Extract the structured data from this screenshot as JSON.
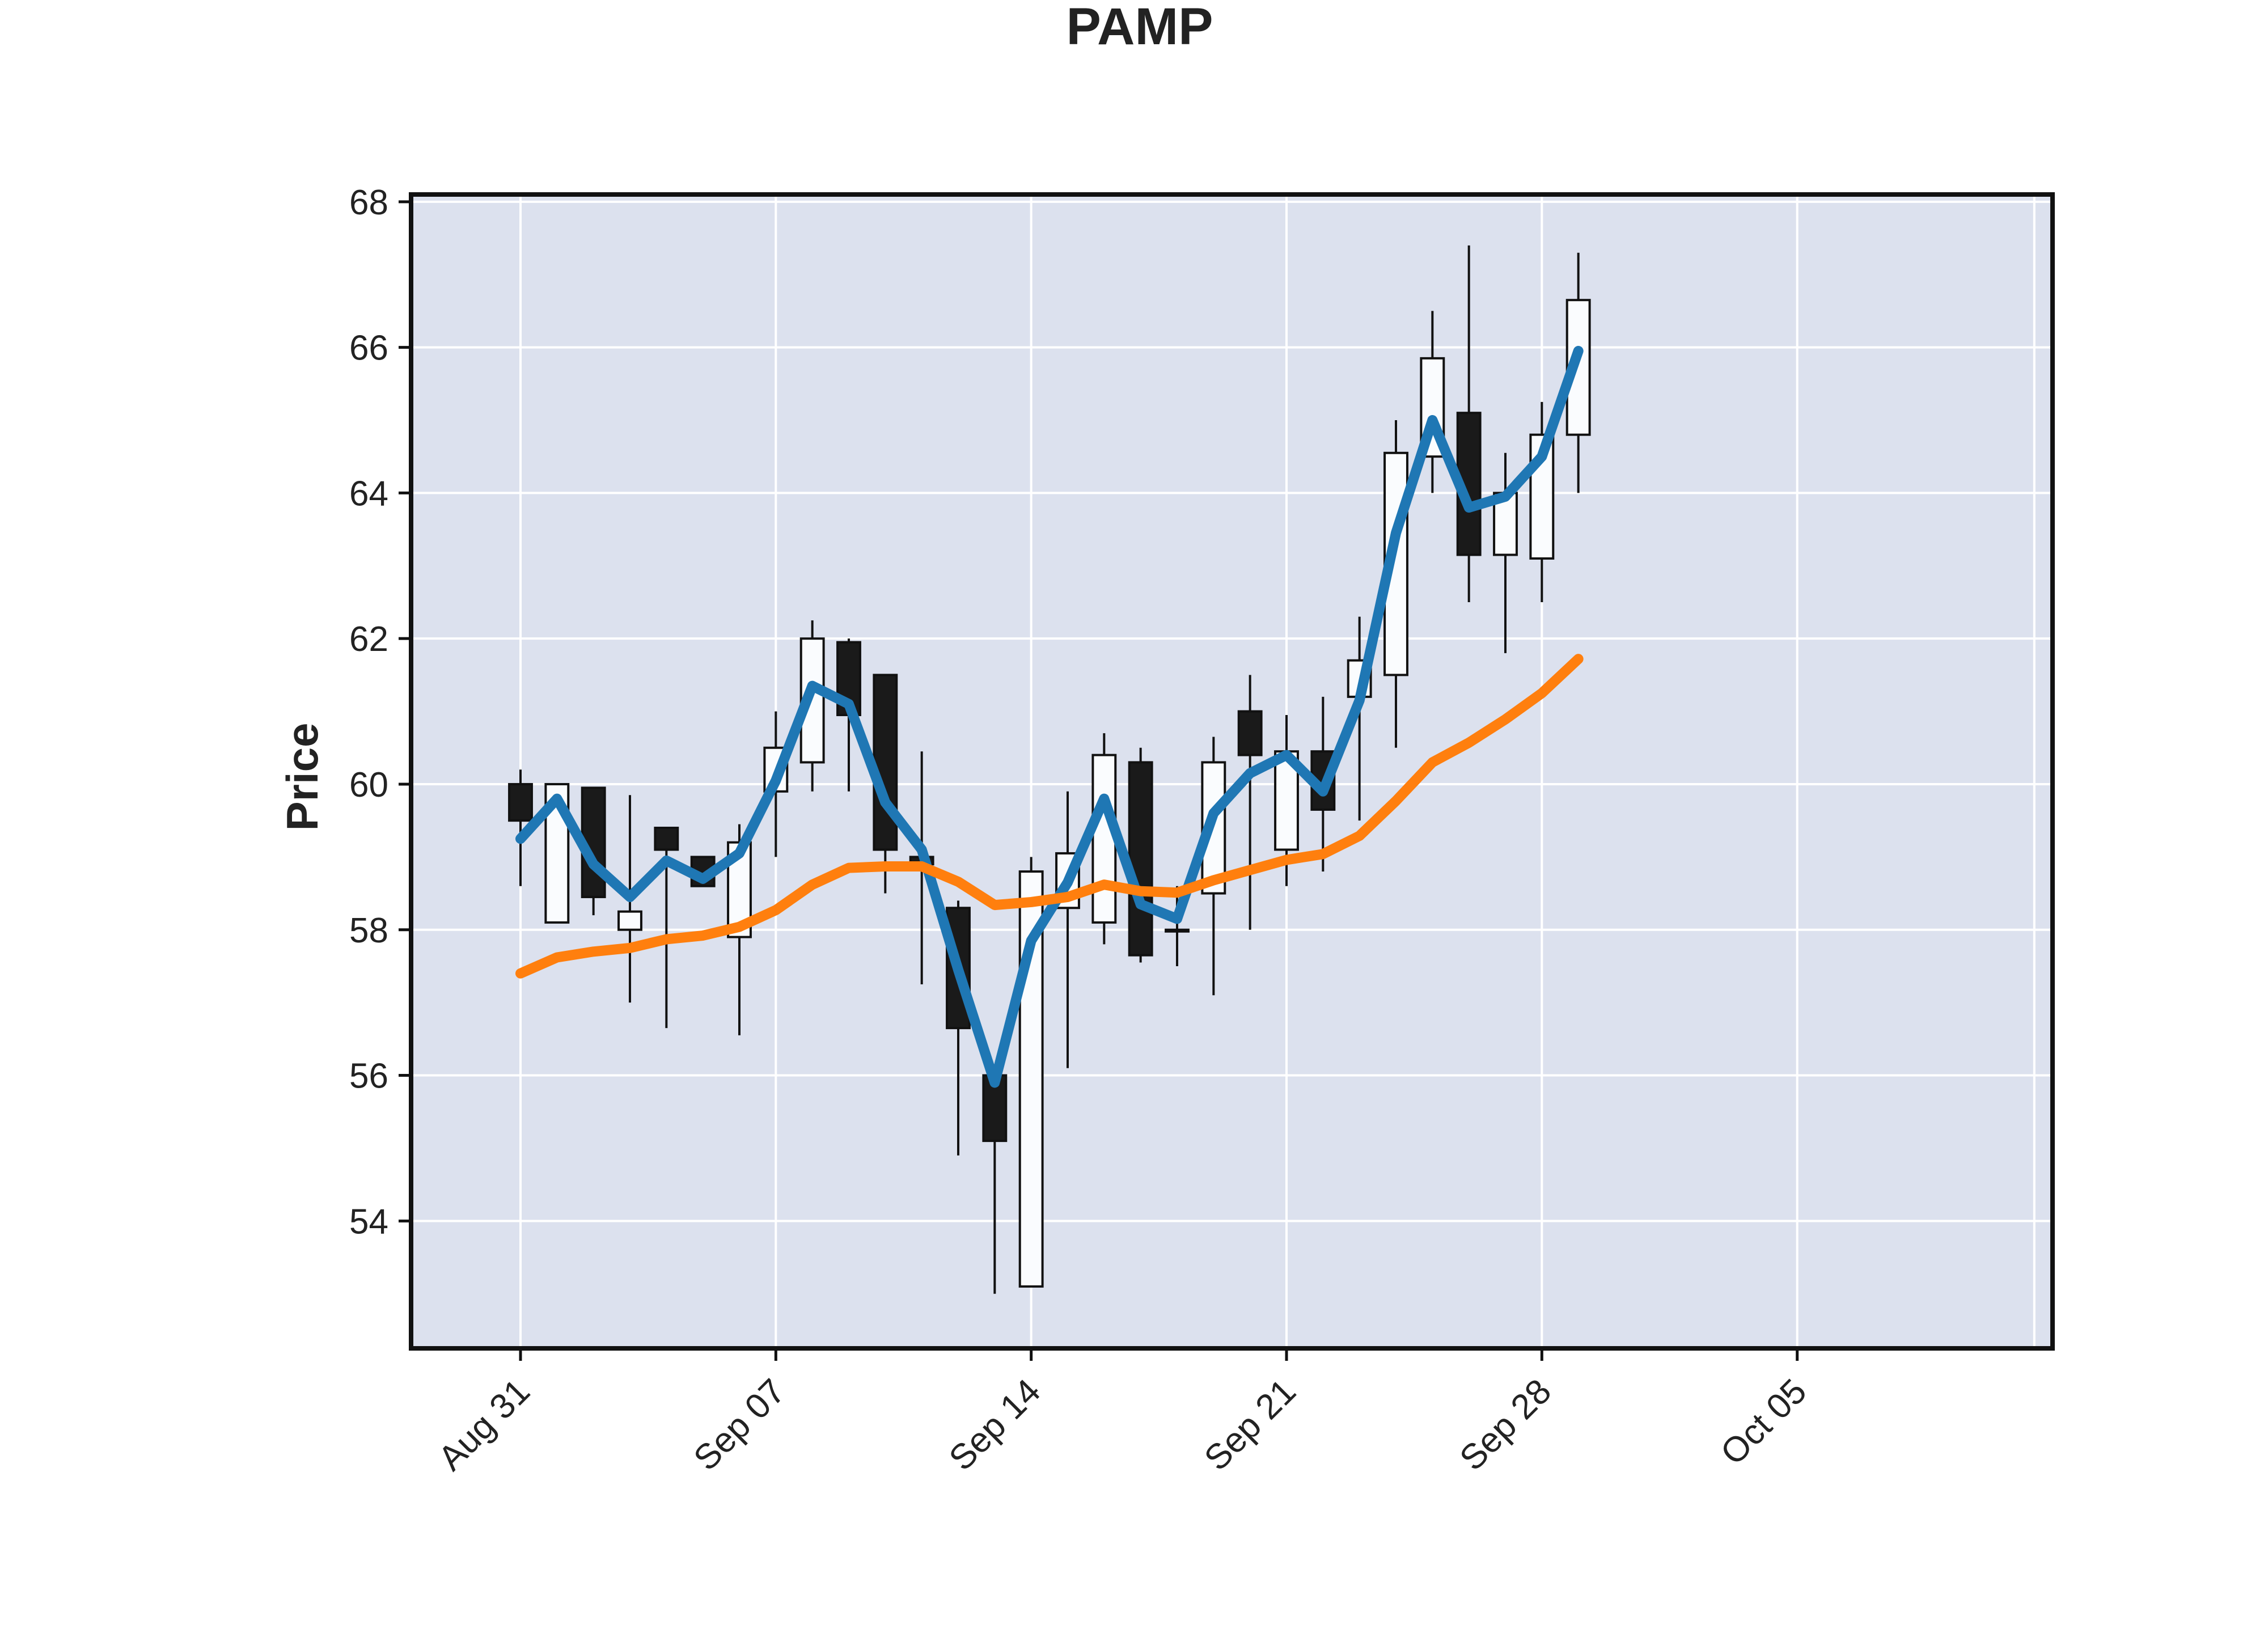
{
  "chart_data": {
    "type": "candlestick",
    "title": "PAMP",
    "ylabel": "Price",
    "xlabel": "",
    "ylim": [
      52.25,
      68.1
    ],
    "yticks": [
      54,
      56,
      58,
      60,
      62,
      64,
      66,
      68
    ],
    "grid": true,
    "legend": "none",
    "xticks": [
      {
        "date": "2020-08-31",
        "label": "Aug 31"
      },
      {
        "date": "2020-09-07",
        "label": "Sep 07"
      },
      {
        "date": "2020-09-14",
        "label": "Sep 14"
      },
      {
        "date": "2020-09-21",
        "label": "Sep 21"
      },
      {
        "date": "2020-09-28",
        "label": "Sep 28"
      },
      {
        "date": "2020-10-05",
        "label": "Oct 05"
      }
    ],
    "xlim": [
      "2020-08-28",
      "2020-10-12"
    ],
    "candles": [
      {
        "date": "2020-08-31",
        "open": 60.0,
        "high": 60.2,
        "low": 58.6,
        "close": 59.5
      },
      {
        "date": "2020-09-01",
        "open": 58.1,
        "high": 60.0,
        "low": 58.1,
        "close": 60.0
      },
      {
        "date": "2020-09-02",
        "open": 59.95,
        "high": 59.95,
        "low": 58.2,
        "close": 58.45
      },
      {
        "date": "2020-09-03",
        "open": 58.0,
        "high": 59.85,
        "low": 57.0,
        "close": 58.25
      },
      {
        "date": "2020-09-04",
        "open": 59.4,
        "high": 59.4,
        "low": 56.65,
        "close": 59.1
      },
      {
        "date": "2020-09-05",
        "open": 59.0,
        "high": 59.0,
        "low": 58.6,
        "close": 58.6
      },
      {
        "date": "2020-09-06",
        "open": 57.9,
        "high": 59.45,
        "low": 56.55,
        "close": 59.2
      },
      {
        "date": "2020-09-07",
        "open": 59.9,
        "high": 61.0,
        "low": 59.0,
        "close": 60.5
      },
      {
        "date": "2020-09-08",
        "open": 60.3,
        "high": 62.25,
        "low": 59.9,
        "close": 62.0
      },
      {
        "date": "2020-09-09",
        "open": 61.95,
        "high": 62.0,
        "low": 59.9,
        "close": 60.95
      },
      {
        "date": "2020-09-10",
        "open": 61.5,
        "high": 61.5,
        "low": 58.5,
        "close": 59.1
      },
      {
        "date": "2020-09-11",
        "open": 59.0,
        "high": 60.45,
        "low": 57.25,
        "close": 58.9
      },
      {
        "date": "2020-09-12",
        "open": 58.3,
        "high": 58.4,
        "low": 54.9,
        "close": 56.65
      },
      {
        "date": "2020-09-13",
        "open": 56.0,
        "high": 56.0,
        "low": 53.0,
        "close": 55.1
      },
      {
        "date": "2020-09-14",
        "open": 53.1,
        "high": 59.0,
        "low": 53.1,
        "close": 58.8
      },
      {
        "date": "2020-09-15",
        "open": 58.3,
        "high": 59.9,
        "low": 56.1,
        "close": 59.05
      },
      {
        "date": "2020-09-16",
        "open": 58.1,
        "high": 60.7,
        "low": 57.8,
        "close": 60.4
      },
      {
        "date": "2020-09-17",
        "open": 60.3,
        "high": 60.5,
        "low": 57.55,
        "close": 57.65
      },
      {
        "date": "2020-09-18",
        "open": 58.0,
        "high": 58.6,
        "low": 57.5,
        "close": 58.0
      },
      {
        "date": "2020-09-19",
        "open": 58.5,
        "high": 60.65,
        "low": 57.1,
        "close": 60.3
      },
      {
        "date": "2020-09-20",
        "open": 61.0,
        "high": 61.5,
        "low": 58.0,
        "close": 60.4
      },
      {
        "date": "2020-09-21",
        "open": 59.1,
        "high": 60.95,
        "low": 58.6,
        "close": 60.45
      },
      {
        "date": "2020-09-22",
        "open": 60.45,
        "high": 61.2,
        "low": 58.8,
        "close": 59.65
      },
      {
        "date": "2020-09-23",
        "open": 61.2,
        "high": 62.3,
        "low": 59.5,
        "close": 61.7
      },
      {
        "date": "2020-09-24",
        "open": 61.5,
        "high": 65.0,
        "low": 60.5,
        "close": 64.55
      },
      {
        "date": "2020-09-25",
        "open": 64.5,
        "high": 66.5,
        "low": 64.0,
        "close": 65.85
      },
      {
        "date": "2020-09-26",
        "open": 65.1,
        "high": 67.4,
        "low": 62.5,
        "close": 63.15
      },
      {
        "date": "2020-09-27",
        "open": 63.15,
        "high": 64.55,
        "low": 61.8,
        "close": 64.0
      },
      {
        "date": "2020-09-28",
        "open": 63.1,
        "high": 65.25,
        "low": 62.5,
        "close": 64.8
      },
      {
        "date": "2020-09-29",
        "open": 64.8,
        "high": 67.3,
        "low": 64.0,
        "close": 66.65
      }
    ],
    "series": [
      {
        "color": "#1f77b4",
        "values": [
          59.25,
          59.8,
          58.9,
          58.45,
          58.95,
          58.7,
          59.05,
          60.05,
          61.35,
          61.1,
          59.75,
          59.1,
          57.45,
          55.9,
          57.85,
          58.65,
          59.8,
          58.35,
          58.15,
          59.6,
          60.15,
          60.4,
          59.9,
          61.15,
          63.45,
          65.0,
          63.8,
          63.95,
          64.5,
          65.95
        ]
      },
      {
        "color": "#ff7f0e",
        "values": [
          57.4,
          57.62,
          57.7,
          57.75,
          57.87,
          57.92,
          58.04,
          58.27,
          58.62,
          58.85,
          58.87,
          58.87,
          58.66,
          58.34,
          58.38,
          58.45,
          58.62,
          58.53,
          58.51,
          58.68,
          58.82,
          58.96,
          59.04,
          59.29,
          59.77,
          60.3,
          60.57,
          60.89,
          61.25,
          61.72
        ]
      }
    ],
    "style": {
      "background": "#dce1ee",
      "grid_color": "#ffffff",
      "up_fill": "#fafcfe",
      "down_fill": "#1a1a1a",
      "edge_color": "#111111"
    }
  }
}
